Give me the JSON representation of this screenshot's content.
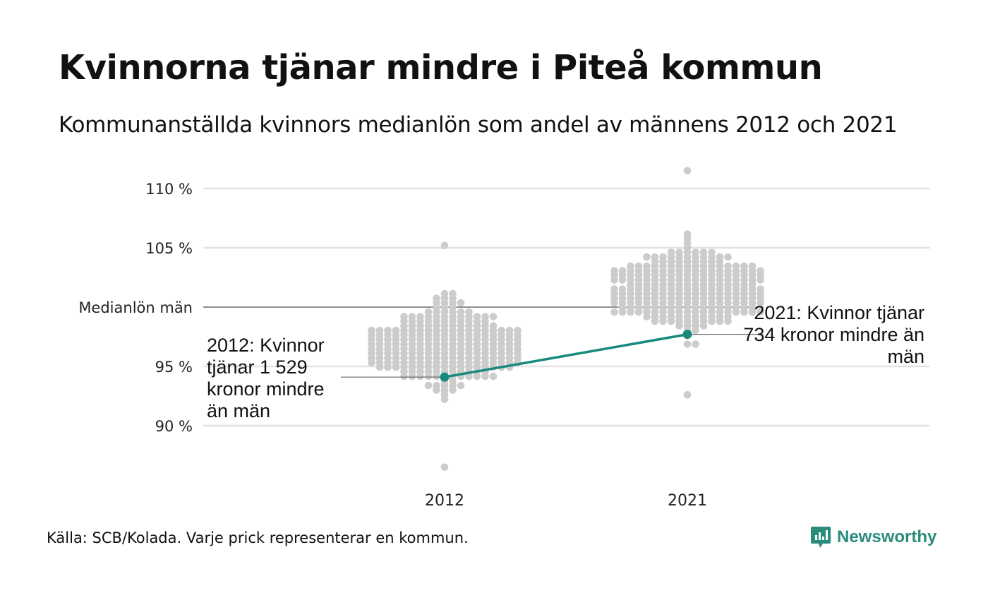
{
  "title": "Kvinnorna tjänar mindre i Piteå kommun",
  "subtitle": "Kommunanställda kvinnors medianlön som andel av männens 2012 och 2021",
  "source": "Källa: SCB/Kolada. Varje prick representerar en kommun.",
  "brand": {
    "name": "Newsworthy",
    "icon": "newsworthy-logo-icon"
  },
  "annotations": {
    "y2012": "2012: Kvinnor tjänar 1 529 kronor mindre än män",
    "y2021": "2021: Kvinnor tjänar 734 kronor mindre än män"
  },
  "colors": {
    "highlight": "#168a7c",
    "dots": "#cccccc",
    "grid": "#e2e2e2",
    "reference": "#222222"
  },
  "chart_data": {
    "type": "scatter",
    "subtype": "beeswarm",
    "categories": [
      "2012",
      "2021"
    ],
    "y_ticks": [
      {
        "value": 110,
        "label": "110 %"
      },
      {
        "value": 105,
        "label": "105 %"
      },
      {
        "value": 100,
        "label": "Medianlön män"
      },
      {
        "value": 95,
        "label": "95 %"
      },
      {
        "value": 90,
        "label": "90 %"
      }
    ],
    "ylim": [
      86,
      111.5
    ],
    "grid": true,
    "reference_line": {
      "value": 100,
      "label": "Medianlön män"
    },
    "distribution": [
      {
        "category": "2012",
        "min": 86.5,
        "max": 105.2,
        "median": 97.0
      },
      {
        "category": "2021",
        "min": 92.6,
        "max": 111.5,
        "median": 101.5
      }
    ],
    "highlight_series": {
      "name": "Piteå",
      "values": [
        94.1,
        97.7
      ]
    }
  }
}
